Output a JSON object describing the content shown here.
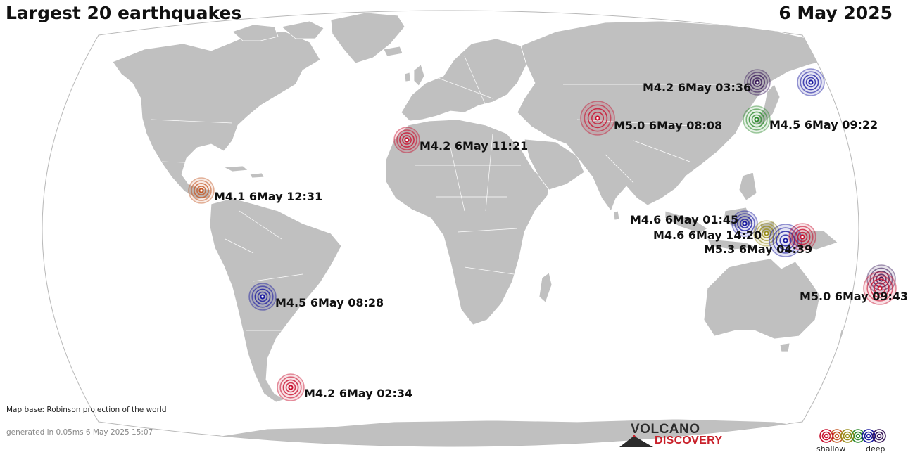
{
  "header": {
    "title": "Largest 20 earthquakes",
    "date": "6 May 2025"
  },
  "map": {
    "projection_note": "Map base: Robinson projection of the world",
    "generated_note": "generated in 0.05ms  6 May 2025 15:07",
    "land_color": "#c0c0c0",
    "border_color": "#ffffff"
  },
  "depth_colors": {
    "shallow": "#c8102e",
    "orange": "#c45a28",
    "yellow": "#9a8f1c",
    "green": "#2e8b2e",
    "blue": "#1a1aa0",
    "purple": "#3a1a5a"
  },
  "earthquakes": [
    {
      "label": "M4.2  6May 03:36",
      "depth": "purple"
    },
    {
      "label": "",
      "depth": "blue"
    },
    {
      "label": "M5.0  6May 08:08",
      "depth": "shallow"
    },
    {
      "label": "M4.5  6May 09:22",
      "depth": "green"
    },
    {
      "label": "M4.2  6May 11:21",
      "depth": "shallow"
    },
    {
      "label": "M4.1  6May 12:31",
      "depth": "orange"
    },
    {
      "label": "M4.6  6May 01:45",
      "depth": "blue"
    },
    {
      "label": "M4.6  6May 14:20",
      "depth": "yellow"
    },
    {
      "label": "M5.3  6May 04:39",
      "depth": "blue"
    },
    {
      "label": "",
      "depth": "shallow"
    },
    {
      "label": "M5.0  6May 09:43",
      "depth": "purple"
    },
    {
      "label": "",
      "depth": "shallow"
    },
    {
      "label": "M4.5  6May 08:28",
      "depth": "blue"
    },
    {
      "label": "M4.2  6May 02:34",
      "depth": "shallow"
    }
  ],
  "logo": {
    "word1": "VOLCANO",
    "word2": "DISCOVERY"
  },
  "legend": {
    "shallow_label": "shallow",
    "deep_label": "deep",
    "colors": [
      "#c8102e",
      "#c45a28",
      "#9a8f1c",
      "#2e8b2e",
      "#1a1aa0",
      "#3a1a5a"
    ]
  }
}
